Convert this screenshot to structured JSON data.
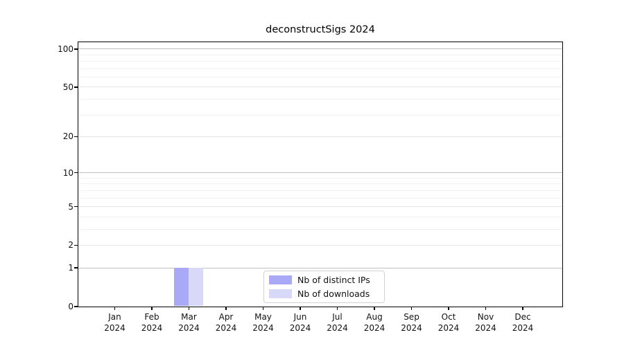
{
  "title": "deconstructSigs 2024",
  "colors": {
    "distinct_ips": "#a9a9f8",
    "downloads": "#d8d8f9",
    "grid_decade": "#c0c0c0",
    "grid_major": "#e6e6e6",
    "grid_minor": "#f2f2f2",
    "axis": "#000000"
  },
  "chart_data": {
    "type": "bar",
    "title": "deconstructSigs 2024",
    "xlabel": "",
    "ylabel": "",
    "yscale": "log1p",
    "grid": true,
    "legend_position": "lower center",
    "ylim": [
      0,
      113
    ],
    "yticks": [
      0,
      1,
      2,
      5,
      10,
      20,
      50,
      100
    ],
    "yticks_minor": [
      3,
      4,
      6,
      7,
      8,
      9,
      30,
      40,
      60,
      70,
      80,
      90
    ],
    "categories": [
      {
        "month": "Jan",
        "year": "2024"
      },
      {
        "month": "Feb",
        "year": "2024"
      },
      {
        "month": "Mar",
        "year": "2024"
      },
      {
        "month": "Apr",
        "year": "2024"
      },
      {
        "month": "May",
        "year": "2024"
      },
      {
        "month": "Jun",
        "year": "2024"
      },
      {
        "month": "Jul",
        "year": "2024"
      },
      {
        "month": "Aug",
        "year": "2024"
      },
      {
        "month": "Sep",
        "year": "2024"
      },
      {
        "month": "Oct",
        "year": "2024"
      },
      {
        "month": "Nov",
        "year": "2024"
      },
      {
        "month": "Dec",
        "year": "2024"
      }
    ],
    "series": [
      {
        "name": "Nb of distinct IPs",
        "key": "distinct-ips",
        "color": "#a9a9f8",
        "values": [
          0,
          0,
          1,
          0,
          0,
          0,
          0,
          0,
          0,
          0,
          0,
          0
        ]
      },
      {
        "name": "Nb of downloads",
        "key": "downloads",
        "color": "#d8d8f9",
        "values": [
          0,
          0,
          1,
          0,
          0,
          0,
          0,
          0,
          0,
          0,
          0,
          0
        ]
      }
    ]
  }
}
